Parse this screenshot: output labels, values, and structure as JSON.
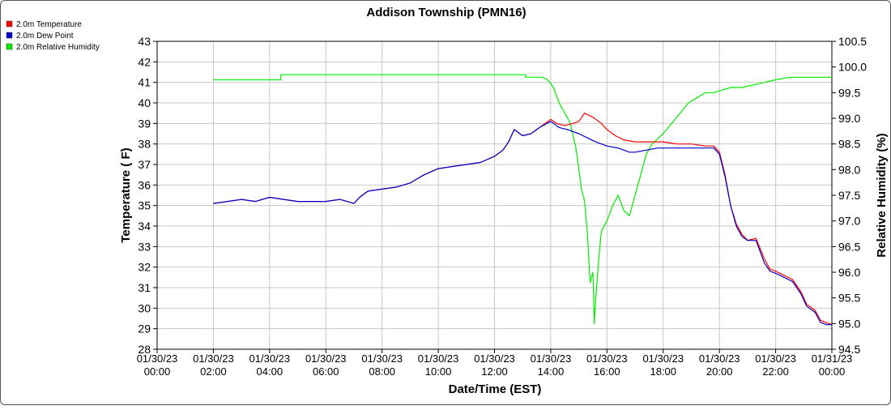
{
  "chart_data": {
    "type": "line",
    "title": "Addison Township (PMN16)",
    "xlabel": "Date/Time (EST)",
    "ylabel": "Temperature ( F)",
    "ylabel_right": "Relative Humidity (%)",
    "xlim": [
      0,
      24
    ],
    "ylim": [
      28,
      43
    ],
    "ylim_right": [
      94.5,
      100.5
    ],
    "grid": true,
    "legend_position": "top-left",
    "x_ticks": [
      {
        "hour": 0,
        "date": "01/30/23",
        "time": "00:00"
      },
      {
        "hour": 2,
        "date": "01/30/23",
        "time": "02:00"
      },
      {
        "hour": 4,
        "date": "01/30/23",
        "time": "04:00"
      },
      {
        "hour": 6,
        "date": "01/30/23",
        "time": "06:00"
      },
      {
        "hour": 8,
        "date": "01/30/23",
        "time": "08:00"
      },
      {
        "hour": 10,
        "date": "01/30/23",
        "time": "10:00"
      },
      {
        "hour": 12,
        "date": "01/30/23",
        "time": "12:00"
      },
      {
        "hour": 14,
        "date": "01/30/23",
        "time": "14:00"
      },
      {
        "hour": 16,
        "date": "01/30/23",
        "time": "16:00"
      },
      {
        "hour": 18,
        "date": "01/30/23",
        "time": "18:00"
      },
      {
        "hour": 20,
        "date": "01/30/23",
        "time": "20:00"
      },
      {
        "hour": 22,
        "date": "01/30/23",
        "time": "22:00"
      },
      {
        "hour": 24,
        "date": "01/31/23",
        "time": "00:00"
      }
    ],
    "y_ticks": [
      "28",
      "29",
      "30",
      "31",
      "32",
      "33",
      "34",
      "35",
      "36",
      "37",
      "38",
      "39",
      "40",
      "41",
      "42",
      "43"
    ],
    "y_ticks_right": [
      "94.5",
      "95.0",
      "95.5",
      "96.0",
      "96.5",
      "97.0",
      "97.5",
      "98.0",
      "98.5",
      "99.0",
      "99.5",
      "100.0",
      "100.5"
    ],
    "series": [
      {
        "name": "2.0m Temperature",
        "color": "#ff0000",
        "axis": "left",
        "x": [
          2.0,
          2.5,
          3.0,
          3.5,
          4.0,
          4.5,
          5.0,
          5.5,
          6.0,
          6.5,
          7.0,
          7.2,
          7.5,
          8.0,
          8.5,
          9.0,
          9.5,
          10.0,
          10.5,
          11.0,
          11.5,
          12.0,
          12.3,
          12.5,
          12.7,
          13.0,
          13.3,
          13.6,
          14.0,
          14.2,
          14.5,
          14.8,
          15.0,
          15.2,
          15.5,
          15.8,
          16.0,
          16.3,
          16.6,
          17.0,
          17.5,
          18.0,
          18.5,
          19.0,
          19.5,
          19.8,
          20.0,
          20.2,
          20.4,
          20.6,
          20.8,
          21.0,
          21.3,
          21.6,
          21.8,
          22.0,
          22.3,
          22.6,
          22.9,
          23.1,
          23.4,
          23.6,
          23.8,
          24.0
        ],
        "values": [
          35.1,
          35.2,
          35.3,
          35.2,
          35.4,
          35.3,
          35.2,
          35.2,
          35.2,
          35.3,
          35.1,
          35.4,
          35.7,
          35.8,
          35.9,
          36.1,
          36.5,
          36.8,
          36.9,
          37.0,
          37.1,
          37.4,
          37.7,
          38.1,
          38.7,
          38.4,
          38.5,
          38.8,
          39.2,
          39.0,
          38.9,
          39.0,
          39.1,
          39.5,
          39.3,
          39.0,
          38.7,
          38.4,
          38.2,
          38.1,
          38.1,
          38.1,
          38.0,
          38.0,
          37.9,
          37.9,
          37.6,
          36.5,
          35.0,
          34.1,
          33.6,
          33.3,
          33.4,
          32.4,
          31.9,
          31.8,
          31.6,
          31.4,
          30.8,
          30.2,
          29.9,
          29.4,
          29.3,
          29.2
        ]
      },
      {
        "name": "2.0m Dew Point",
        "color": "#0000cc",
        "axis": "left",
        "x": [
          2.0,
          2.5,
          3.0,
          3.5,
          4.0,
          4.5,
          5.0,
          5.5,
          6.0,
          6.5,
          7.0,
          7.2,
          7.5,
          8.0,
          8.5,
          9.0,
          9.5,
          10.0,
          10.5,
          11.0,
          11.5,
          12.0,
          12.3,
          12.5,
          12.7,
          13.0,
          13.3,
          13.6,
          14.0,
          14.3,
          14.6,
          15.0,
          15.3,
          15.6,
          16.0,
          16.4,
          16.8,
          17.0,
          17.4,
          17.8,
          18.2,
          18.6,
          19.0,
          19.5,
          19.8,
          20.0,
          20.2,
          20.4,
          20.6,
          20.8,
          21.0,
          21.3,
          21.6,
          21.8,
          22.0,
          22.3,
          22.6,
          22.9,
          23.1,
          23.4,
          23.6,
          23.8,
          24.0
        ],
        "values": [
          35.1,
          35.2,
          35.3,
          35.2,
          35.4,
          35.3,
          35.2,
          35.2,
          35.2,
          35.3,
          35.1,
          35.4,
          35.7,
          35.8,
          35.9,
          36.1,
          36.5,
          36.8,
          36.9,
          37.0,
          37.1,
          37.4,
          37.7,
          38.1,
          38.7,
          38.4,
          38.5,
          38.8,
          39.1,
          38.8,
          38.7,
          38.5,
          38.3,
          38.1,
          37.9,
          37.8,
          37.6,
          37.6,
          37.7,
          37.8,
          37.8,
          37.8,
          37.8,
          37.8,
          37.8,
          37.5,
          36.4,
          35.0,
          34.0,
          33.5,
          33.3,
          33.3,
          32.2,
          31.8,
          31.7,
          31.5,
          31.3,
          30.7,
          30.1,
          29.8,
          29.3,
          29.2,
          29.2
        ]
      },
      {
        "name": "2.0m Relative Humidity",
        "color": "#00ee00",
        "axis": "right",
        "x": [
          2.0,
          4.4,
          4.4,
          13.1,
          13.1,
          13.3,
          13.5,
          13.7,
          13.9,
          14.1,
          14.3,
          14.5,
          14.7,
          14.9,
          15.1,
          15.2,
          15.3,
          15.4,
          15.5,
          15.55,
          15.6,
          15.7,
          15.8,
          16.0,
          16.2,
          16.4,
          16.6,
          16.8,
          17.0,
          17.2,
          17.4,
          17.6,
          17.8,
          18.0,
          18.3,
          18.6,
          18.9,
          19.2,
          19.5,
          19.8,
          20.1,
          20.4,
          20.8,
          21.2,
          21.6,
          22.0,
          22.5,
          23.0,
          23.5,
          24.0
        ],
        "values": [
          99.75,
          99.75,
          99.85,
          99.85,
          99.8,
          99.8,
          99.8,
          99.8,
          99.75,
          99.6,
          99.3,
          99.1,
          98.9,
          98.4,
          97.6,
          97.4,
          96.8,
          95.8,
          96.0,
          95.0,
          95.5,
          96.2,
          96.8,
          97.0,
          97.3,
          97.5,
          97.2,
          97.1,
          97.5,
          97.9,
          98.3,
          98.5,
          98.6,
          98.7,
          98.9,
          99.1,
          99.3,
          99.4,
          99.5,
          99.5,
          99.55,
          99.6,
          99.6,
          99.65,
          99.7,
          99.75,
          99.8,
          99.8,
          99.8,
          99.8
        ]
      }
    ]
  }
}
